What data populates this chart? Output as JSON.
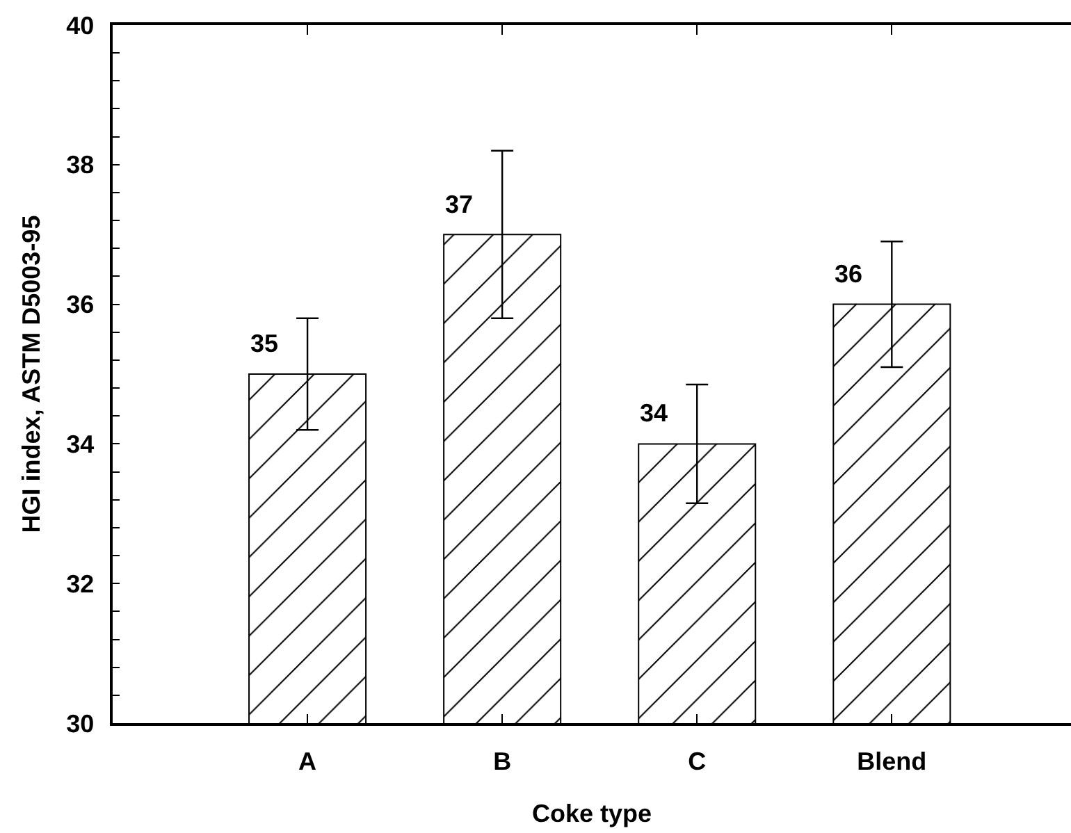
{
  "chart_data": {
    "type": "bar",
    "xlabel": "Coke type",
    "ylabel": "HGI index, ASTM D5003-95",
    "categories": [
      "A",
      "B",
      "C",
      "Blend"
    ],
    "values": [
      35,
      37,
      34,
      36
    ],
    "color": "#000000",
    "errors": [
      0.8,
      1.2,
      0.85,
      0.9
    ],
    "data_labels": true,
    "ylim": [
      30,
      40
    ],
    "yticks": [
      30,
      {
        "value": 30.4,
        "label": null
      },
      {
        "value": 30.8,
        "label": null
      },
      {
        "value": 31.2,
        "label": null
      },
      {
        "value": 31.6,
        "label": null
      },
      32,
      {
        "value": 32.4,
        "label": null
      },
      {
        "value": 32.8,
        "label": null
      },
      {
        "value": 33.2,
        "label": null
      },
      {
        "value": 33.6,
        "label": null
      },
      34,
      {
        "value": 34.4,
        "label": null
      },
      {
        "value": 34.8,
        "label": null
      },
      {
        "value": 35.2,
        "label": null
      },
      {
        "value": 35.6,
        "label": null
      },
      36,
      {
        "value": 36.4,
        "label": null
      },
      {
        "value": 36.8,
        "label": null
      },
      {
        "value": 37.2,
        "label": null
      },
      {
        "value": 37.6,
        "label": null
      },
      38,
      {
        "value": 38.4,
        "label": null
      },
      {
        "value": 38.8,
        "label": null
      },
      {
        "value": 39.2,
        "label": null
      },
      {
        "value": 39.6,
        "label": null
      },
      40
    ]
  }
}
